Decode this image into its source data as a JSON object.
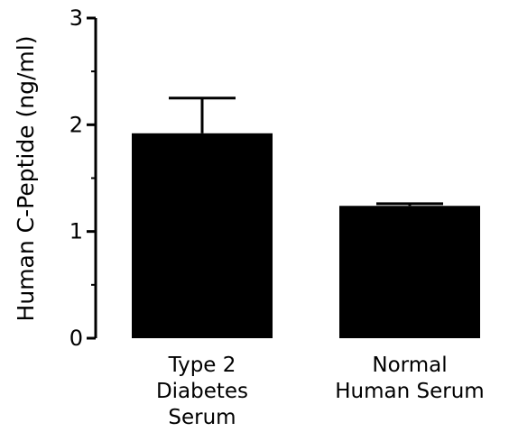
{
  "chart_data": {
    "type": "bar",
    "categories": [
      [
        "Type 2",
        "Diabetes",
        "Serum"
      ],
      [
        "Normal",
        "Human Serum"
      ]
    ],
    "values": [
      1.92,
      1.24
    ],
    "error_upper": [
      2.25,
      1.26
    ],
    "ylabel": "Human C-Peptide (ng/ml)",
    "xlabel": "",
    "ylim": [
      0,
      3
    ],
    "yticks": [
      "0",
      "1",
      "2",
      "3"
    ],
    "bar_color": "#000000",
    "grid": false
  }
}
